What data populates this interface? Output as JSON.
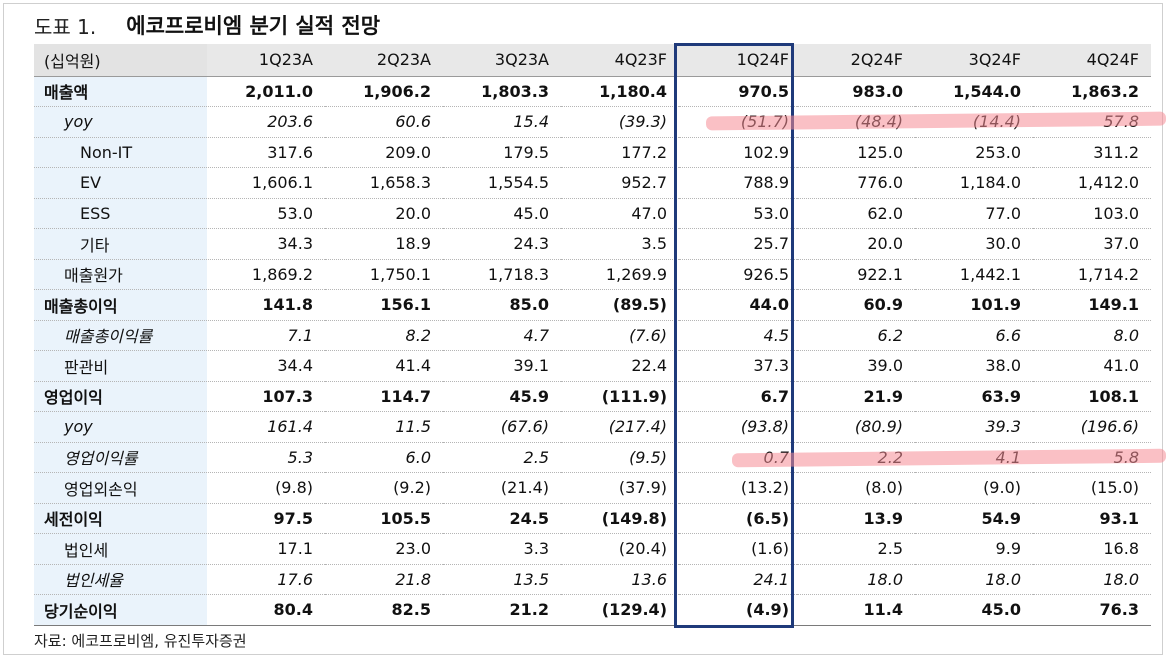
{
  "title": {
    "fig_label": "도표 1.",
    "name": "에코프로비엠 분기 실적 전망"
  },
  "header": {
    "unit": "(십억원)",
    "columns": [
      "1Q23A",
      "2Q23A",
      "3Q23A",
      "4Q23F",
      "1Q24F",
      "2Q24F",
      "3Q24F",
      "4Q24F"
    ]
  },
  "rows": [
    {
      "label": "매출액",
      "style": "bold",
      "indent": 0,
      "values": [
        "2,011.0",
        "1,906.2",
        "1,803.3",
        "1,180.4",
        "970.5",
        "983.0",
        "1,544.0",
        "1,863.2"
      ]
    },
    {
      "label": "yoy",
      "style": "italic",
      "indent": 1,
      "values": [
        "203.6",
        "60.6",
        "15.4",
        "(39.3)",
        "(51.7)",
        "(48.4)",
        "(14.4)",
        "57.8"
      ]
    },
    {
      "label": "Non-IT",
      "style": "normal",
      "indent": 2,
      "values": [
        "317.6",
        "209.0",
        "179.5",
        "177.2",
        "102.9",
        "125.0",
        "253.0",
        "311.2"
      ]
    },
    {
      "label": "EV",
      "style": "normal",
      "indent": 2,
      "values": [
        "1,606.1",
        "1,658.3",
        "1,554.5",
        "952.7",
        "788.9",
        "776.0",
        "1,184.0",
        "1,412.0"
      ]
    },
    {
      "label": "ESS",
      "style": "normal",
      "indent": 2,
      "values": [
        "53.0",
        "20.0",
        "45.0",
        "47.0",
        "53.0",
        "62.0",
        "77.0",
        "103.0"
      ]
    },
    {
      "label": "기타",
      "style": "normal",
      "indent": 2,
      "values": [
        "34.3",
        "18.9",
        "24.3",
        "3.5",
        "25.7",
        "20.0",
        "30.0",
        "37.0"
      ]
    },
    {
      "label": "매출원가",
      "style": "normal",
      "indent": 1,
      "values": [
        "1,869.2",
        "1,750.1",
        "1,718.3",
        "1,269.9",
        "926.5",
        "922.1",
        "1,442.1",
        "1,714.2"
      ]
    },
    {
      "label": "매출총이익",
      "style": "bold",
      "indent": 0,
      "values": [
        "141.8",
        "156.1",
        "85.0",
        "(89.5)",
        "44.0",
        "60.9",
        "101.9",
        "149.1"
      ]
    },
    {
      "label": "매출총이익률",
      "style": "italic",
      "indent": 1,
      "values": [
        "7.1",
        "8.2",
        "4.7",
        "(7.6)",
        "4.5",
        "6.2",
        "6.6",
        "8.0"
      ]
    },
    {
      "label": "판관비",
      "style": "normal",
      "indent": 1,
      "values": [
        "34.4",
        "41.4",
        "39.1",
        "22.4",
        "37.3",
        "39.0",
        "38.0",
        "41.0"
      ]
    },
    {
      "label": "영업이익",
      "style": "bold",
      "indent": 0,
      "values": [
        "107.3",
        "114.7",
        "45.9",
        "(111.9)",
        "6.7",
        "21.9",
        "63.9",
        "108.1"
      ]
    },
    {
      "label": "yoy",
      "style": "italic",
      "indent": 1,
      "values": [
        "161.4",
        "11.5",
        "(67.6)",
        "(217.4)",
        "(93.8)",
        "(80.9)",
        "39.3",
        "(196.6)"
      ]
    },
    {
      "label": "영업이익률",
      "style": "italic",
      "indent": 1,
      "values": [
        "5.3",
        "6.0",
        "2.5",
        "(9.5)",
        "0.7",
        "2.2",
        "4.1",
        "5.8"
      ]
    },
    {
      "label": "영업외손익",
      "style": "normal",
      "indent": 1,
      "values": [
        "(9.8)",
        "(9.2)",
        "(21.4)",
        "(37.9)",
        "(13.2)",
        "(8.0)",
        "(9.0)",
        "(15.0)"
      ]
    },
    {
      "label": "세전이익",
      "style": "bold",
      "indent": 0,
      "values": [
        "97.5",
        "105.5",
        "24.5",
        "(149.8)",
        "(6.5)",
        "13.9",
        "54.9",
        "93.1"
      ]
    },
    {
      "label": "법인세",
      "style": "normal",
      "indent": 1,
      "values": [
        "17.1",
        "23.0",
        "3.3",
        "(20.4)",
        "(1.6)",
        "2.5",
        "9.9",
        "16.8"
      ]
    },
    {
      "label": "법인세율",
      "style": "italic",
      "indent": 1,
      "values": [
        "17.6",
        "21.8",
        "13.5",
        "13.6",
        "24.1",
        "18.0",
        "18.0",
        "18.0"
      ]
    },
    {
      "label": "당기순이익",
      "style": "bold",
      "indent": 0,
      "values": [
        "80.4",
        "82.5",
        "21.2",
        "(129.4)",
        "(4.9)",
        "11.4",
        "45.0",
        "76.3"
      ]
    }
  ],
  "source": "자료: 에코프로비엠, 유진투자증권",
  "colors": {
    "label_bg": "#eaf3fb",
    "header_bg": "#e8e8e8",
    "highlight_border": "#1f3a7a",
    "marker": "#f58c96"
  }
}
